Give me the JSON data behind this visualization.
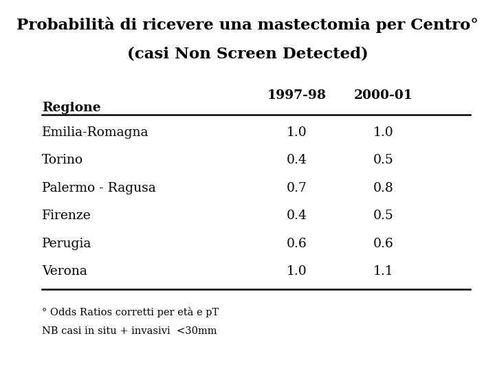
{
  "title_line1": "Probabilità di ricevere una mastectomia per Centro°",
  "title_line2": "(casi Non Screen Detected)",
  "col_headers": [
    "1997-98",
    "2000-01"
  ],
  "row_header": "Regione",
  "rows": [
    [
      "Emilia-Romagna",
      "1.0",
      "1.0"
    ],
    [
      "Torino",
      "0.4",
      "0.5"
    ],
    [
      "Palermo - Ragusa",
      "0.7",
      "0.8"
    ],
    [
      "Firenze",
      "0.4",
      "0.5"
    ],
    [
      "Perugia",
      "0.6",
      "0.6"
    ],
    [
      "Verona",
      "1.0",
      "1.1"
    ]
  ],
  "footnote1": "° Odds Ratios corretti per età e pT",
  "footnote2": "NB casi in situ + invasivi  <30mm",
  "bg_color": "#ffffff",
  "text_color": "#000000",
  "title_fontsize": 16.5,
  "subtitle_fontsize": 16.5,
  "header_fontsize": 13.5,
  "cell_fontsize": 13.5,
  "footnote_fontsize": 10.5
}
